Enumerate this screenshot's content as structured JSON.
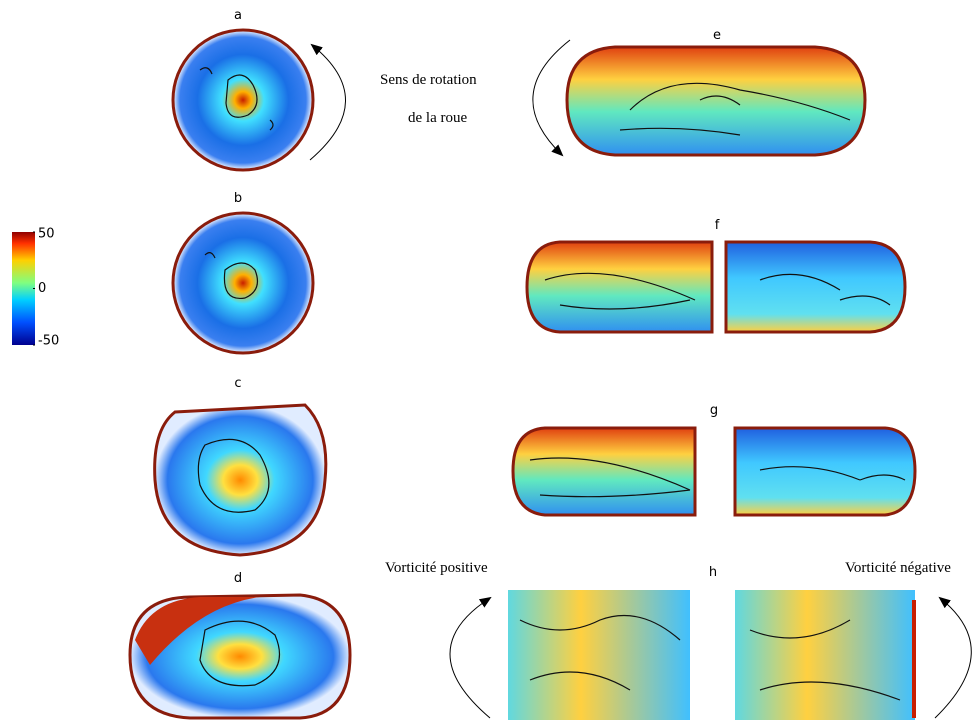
{
  "panels": [
    "a",
    "b",
    "c",
    "d",
    "e",
    "f",
    "g",
    "h"
  ],
  "annotations": {
    "rotation_line1": "Sens de rotation",
    "rotation_line2": "de la roue",
    "positive": "Vorticité positive",
    "negative": "Vorticité négative"
  },
  "colorbar": {
    "range": [
      -50,
      50
    ],
    "ticks": [
      50,
      0,
      -50
    ]
  }
}
